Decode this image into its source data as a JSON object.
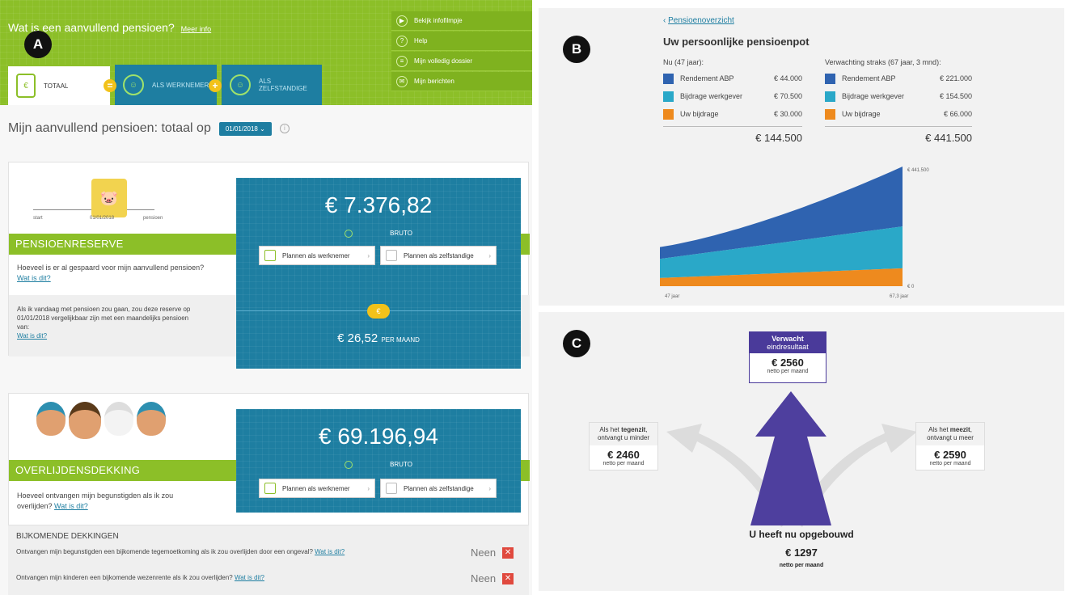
{
  "badges": {
    "a": "A",
    "b": "B",
    "c": "C"
  },
  "panel_a": {
    "header_title": "Wat is een aanvullend pensioen?",
    "header_more": "Meer info",
    "menu": [
      {
        "label": "Bekijk infofilmpje",
        "icon": "play-icon"
      },
      {
        "label": "Help",
        "icon": "help-icon"
      },
      {
        "label": "Mijn volledig dossier",
        "icon": "printer-icon"
      },
      {
        "label": "Mijn berichten",
        "icon": "message-icon"
      }
    ],
    "tabs": {
      "totaal": "TOTAAL",
      "werknemer": "ALS WERKNEMER",
      "zelfstandige_1": "ALS",
      "zelfstandige_2": "ZELFSTANDIGE"
    },
    "join_equals": "=",
    "join_plus": "+",
    "heading": "Mijn aanvullend pensioen: totaal op",
    "date": "01/01/2018",
    "reserve": {
      "timeline_start": "start",
      "timeline_date": "01/01/2018",
      "timeline_end": "pensioen",
      "title": "PENSIOENRESERVE",
      "question": "Hoeveel is er al gespaard voor mijn aanvullend pensioen?",
      "what_link": "Wat is dit?",
      "explain": "Als ik vandaag met pensioen zou gaan, zou deze reserve op 01/01/2018 vergelijkbaar zijn met een maandelijks pensioen van:",
      "explain_link": "Wat is dit?",
      "amount": "€ 7.376,82",
      "bruto": "BRUTO",
      "monthly": "€ 26,52",
      "monthly_suffix": "PER MAAND"
    },
    "death": {
      "title": "OVERLIJDENSDEKKING",
      "question": "Hoeveel ontvangen mijn begunstigden als ik zou overlijden?",
      "what_link": "Wat is dit?",
      "amount": "€ 69.196,94",
      "bruto": "BRUTO"
    },
    "plan_werknemer": "Plannen als werknemer",
    "plan_zelfstandige": "Plannen als zelfstandige",
    "extra": {
      "title": "BIJKOMENDE DEKKINGEN",
      "rows": [
        {
          "text": "Ontvangen mijn begunstigden een bijkomende tegemoetkoming als ik zou overlijden door een ongeval?",
          "link": "Wat is dit?",
          "answer": "Neen"
        },
        {
          "text": "Ontvangen mijn kinderen een bijkomende wezenrente als ik zou overlijden?",
          "link": "Wat is dit?",
          "answer": "Neen"
        }
      ]
    }
  },
  "panel_b": {
    "back_link": "Pensioenoverzicht",
    "title": "Uw persoonlijke pensioenpot",
    "now": {
      "heading": "Nu (47 jaar):",
      "rows": [
        {
          "label": "Rendement ABP",
          "value": "€ 44.000",
          "color": "#2f63b0"
        },
        {
          "label": "Bijdrage werkgever",
          "value": "€ 70.500",
          "color": "#2aa8c8"
        },
        {
          "label": "Uw bijdrage",
          "value": "€ 30.000",
          "color": "#ee8a1e"
        }
      ],
      "total": "€ 144.500"
    },
    "later": {
      "heading": "Verwachting straks (67 jaar, 3 mnd):",
      "rows": [
        {
          "label": "Rendement ABP",
          "value": "€ 221.000",
          "color": "#2f63b0"
        },
        {
          "label": "Bijdrage werkgever",
          "value": "€ 154.500",
          "color": "#2aa8c8"
        },
        {
          "label": "Uw bijdrage",
          "value": "€ 66.000",
          "color": "#ee8a1e"
        }
      ],
      "total": "€ 441.500"
    },
    "chart": {
      "x_start_label": "47 jaar",
      "x_end_label": "67,3 jaar",
      "y_top_label": "€ 441.500",
      "y_bottom_label": "€ 0",
      "ymax": 441500,
      "start": {
        "uw": 30000,
        "werkgever": 70500,
        "rendement": 44000
      },
      "end": {
        "uw": 66000,
        "werkgever": 154500,
        "rendement": 221000
      }
    }
  },
  "panel_c": {
    "expected_head_1": "Verwacht",
    "expected_head_2": "eindresultaat",
    "expected_amount": "€ 2560",
    "expected_sub": "netto per maand",
    "left_head_1": "Als het",
    "left_head_bold": "tegenzit",
    "left_head_2": "ontvangt u minder",
    "left_amount": "€ 2460",
    "left_sub": "netto per maand",
    "right_head_1": "Als het",
    "right_head_bold": "meezit",
    "right_head_2": "ontvangt u meer",
    "right_amount": "€ 2590",
    "right_sub": "netto per maand",
    "built_title": "U heeft nu opgebouwd",
    "built_amount": "€ 1297",
    "built_sub": "netto per maand"
  }
}
